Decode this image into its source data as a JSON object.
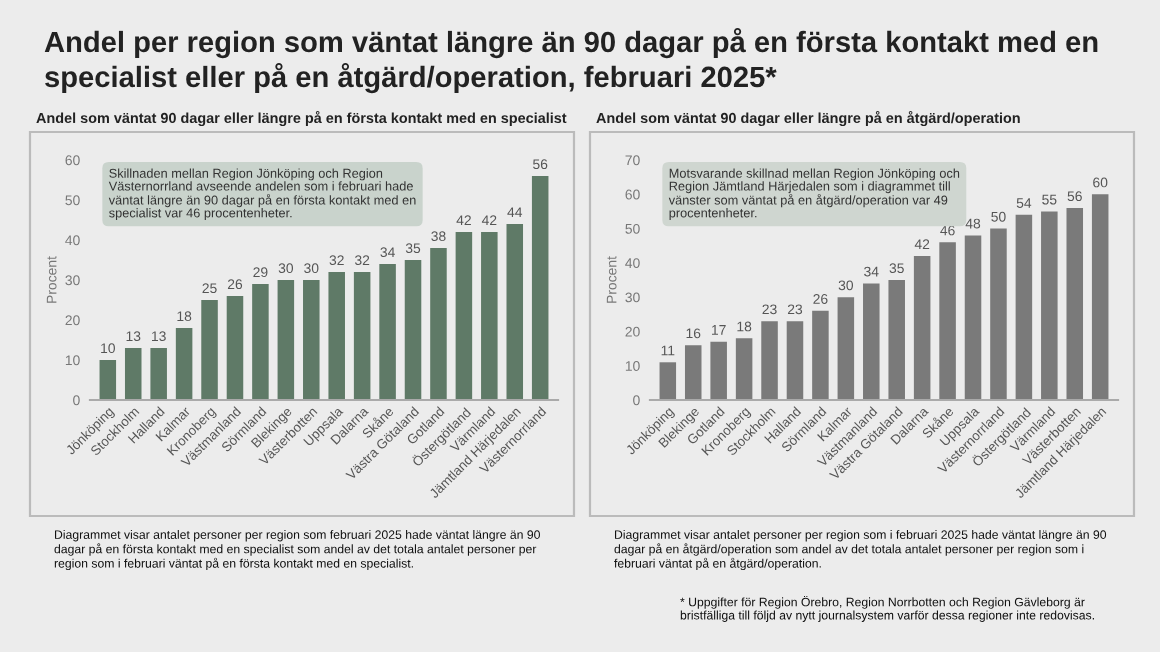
{
  "chart_data": [
    {
      "type": "bar",
      "title": "Andel per region som väntat längre än 90 dagar på en första kontakt med en specialist eller på en åtgärd/operation, februari 2025*",
      "subtitle": "Andel som väntat 90 dagar eller längre på en första kontakt med en specialist",
      "ylabel": "Procent",
      "categories": [
        "Jönköping",
        "Stockholm",
        "Halland",
        "Kalmar",
        "Kronoberg",
        "Västmanland",
        "Sörmland",
        "Blekinge",
        "Västerbotten",
        "Uppsala",
        "Dalarna",
        "Skåne",
        "Västra Götaland",
        "Gotland",
        "Östergötland",
        "Värmland",
        "Jämtland Härjedalen",
        "Västernorrland"
      ],
      "values": [
        10,
        13,
        13,
        18,
        25,
        26,
        29,
        30,
        30,
        32,
        32,
        34,
        35,
        38,
        42,
        42,
        44,
        56
      ],
      "color": "#5f7a67",
      "ylim": [
        0,
        60
      ],
      "yticks": [
        0,
        10,
        20,
        30,
        40,
        50,
        60
      ],
      "data_labels": true,
      "grid": false,
      "annotations": [
        "Skillnaden mellan Region Jönköping och Region Västernorrland avseende andelen som i februari hade väntat längre än 90 dagar på en första kontakt med en specialist var 46 procentenheter.",
        "Diagrammet visar antalet personer per region som februari 2025 hade väntat längre än 90 dagar på en första kontakt med en specialist som andel av det totala antalet personer per region som i februari väntat på en första kontakt med en specialist."
      ]
    },
    {
      "type": "bar",
      "subtitle": "Andel som väntat 90 dagar eller längre på en åtgärd/operation",
      "ylabel": "Procent",
      "categories": [
        "Jönköping",
        "Blekinge",
        "Gotland",
        "Kronoberg",
        "Stockholm",
        "Halland",
        "Sörmland",
        "Kalmar",
        "Västmanland",
        "Västra Götaland",
        "Dalarna",
        "Skåne",
        "Uppsala",
        "Västernorrland",
        "Östergötland",
        "Värmland",
        "Västerbotten",
        "Jämtland Härjedalen"
      ],
      "values": [
        11,
        16,
        17,
        18,
        23,
        23,
        26,
        30,
        34,
        35,
        42,
        46,
        48,
        50,
        54,
        55,
        56,
        60
      ],
      "color": "#7a7a7a",
      "ylim": [
        0,
        70
      ],
      "yticks": [
        0,
        10,
        20,
        30,
        40,
        50,
        60,
        70
      ],
      "data_labels": true,
      "grid": false,
      "annotations": [
        "Motsvarande skillnad mellan Region Jönköping och Region Jämtland Härjedalen som i diagrammet till vänster som väntat på en åtgärd/operation var 49 procentenheter.",
        "Diagrammet visar antalet personer per region som i februari 2025 hade väntat längre än 90 dagar på en åtgärd/operation som andel av det totala antalet personer per region som i februari väntat på en åtgärd/operation.",
        "* Uppgifter för Region Örebro, Region Norrbotten och Region Gävleborg är bristfälliga till följd av nytt journalsystem varför dessa regioner inte redovisas."
      ]
    }
  ]
}
